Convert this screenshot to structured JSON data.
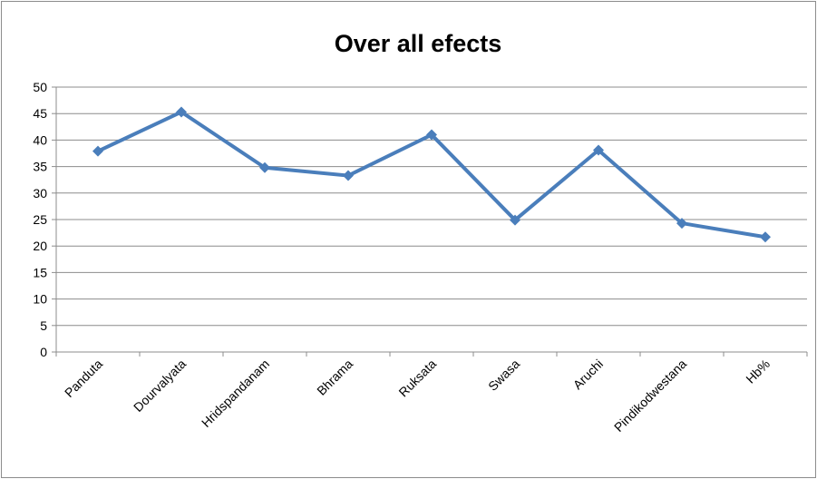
{
  "chart_data": {
    "type": "line",
    "title": "Over all efects",
    "categories": [
      "Panduta",
      "Dourvalyata",
      "Hridspandanam",
      "Bhrama",
      "Ruksata",
      "Swasa",
      "Aruchi",
      "Pindikodwestana",
      "Hb%"
    ],
    "series": [
      {
        "values": [
          37.9,
          45.3,
          34.8,
          33.3,
          41.0,
          24.9,
          38.1,
          24.3,
          21.7
        ]
      }
    ],
    "ylim": [
      0,
      50
    ],
    "ytick_step": 5,
    "grid": true,
    "legend": "none",
    "xlabel": "",
    "ylabel": "",
    "colors": {
      "line": "#4a7ebb",
      "grid": "#8c8c8c",
      "axis": "#8c8c8c"
    }
  }
}
